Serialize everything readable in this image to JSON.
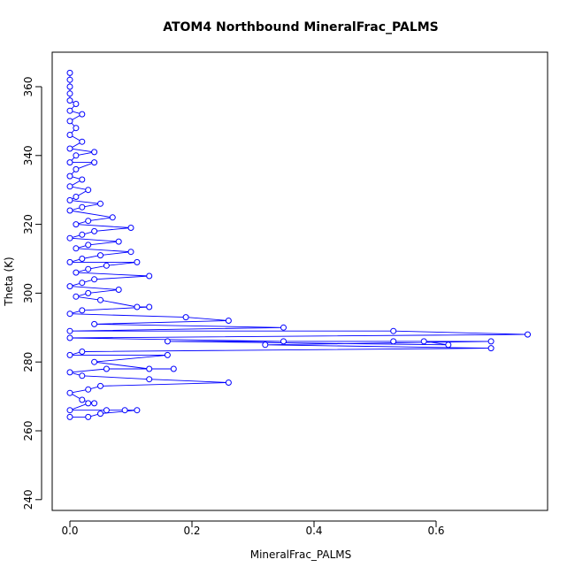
{
  "chart_data": {
    "type": "line",
    "title": "ATOM4 Northbound MineralFrac_PALMS",
    "xlabel": "MineralFrac_PALMS",
    "ylabel": "Theta (K)",
    "xlim": [
      0,
      0.75
    ],
    "ylim": [
      240,
      365
    ],
    "x_ticks": [
      0.0,
      0.2,
      0.4,
      0.6
    ],
    "x_tick_labels": [
      "0.0",
      "0.2",
      "0.4",
      "0.6"
    ],
    "y_ticks": [
      240,
      260,
      280,
      300,
      320,
      340,
      360
    ],
    "y_tick_labels": [
      "240",
      "260",
      "280",
      "300",
      "320",
      "340",
      "360"
    ],
    "grid": false,
    "legend": "none",
    "marker": "open-circle",
    "series_color": "#0000ff",
    "series": [
      {
        "name": "",
        "points": [
          [
            0.0,
            364
          ],
          [
            0.0,
            362
          ],
          [
            0.0,
            360
          ],
          [
            0.0,
            358
          ],
          [
            0.0,
            356
          ],
          [
            0.01,
            355
          ],
          [
            0.0,
            353
          ],
          [
            0.02,
            352
          ],
          [
            0.0,
            350
          ],
          [
            0.01,
            348
          ],
          [
            0.0,
            346
          ],
          [
            0.02,
            344
          ],
          [
            0.0,
            342
          ],
          [
            0.04,
            341
          ],
          [
            0.01,
            340
          ],
          [
            0.0,
            338
          ],
          [
            0.04,
            338
          ],
          [
            0.01,
            336
          ],
          [
            0.0,
            334
          ],
          [
            0.02,
            333
          ],
          [
            0.0,
            331
          ],
          [
            0.03,
            330
          ],
          [
            0.01,
            328
          ],
          [
            0.0,
            327
          ],
          [
            0.05,
            326
          ],
          [
            0.02,
            325
          ],
          [
            0.0,
            324
          ],
          [
            0.07,
            322
          ],
          [
            0.03,
            321
          ],
          [
            0.01,
            320
          ],
          [
            0.1,
            319
          ],
          [
            0.04,
            318
          ],
          [
            0.02,
            317
          ],
          [
            0.0,
            316
          ],
          [
            0.08,
            315
          ],
          [
            0.03,
            314
          ],
          [
            0.01,
            313
          ],
          [
            0.1,
            312
          ],
          [
            0.05,
            311
          ],
          [
            0.02,
            310
          ],
          [
            0.0,
            309
          ],
          [
            0.11,
            309
          ],
          [
            0.06,
            308
          ],
          [
            0.03,
            307
          ],
          [
            0.01,
            306
          ],
          [
            0.13,
            305
          ],
          [
            0.04,
            304
          ],
          [
            0.02,
            303
          ],
          [
            0.0,
            302
          ],
          [
            0.08,
            301
          ],
          [
            0.03,
            300
          ],
          [
            0.01,
            299
          ],
          [
            0.05,
            298
          ],
          [
            0.11,
            296
          ],
          [
            0.13,
            296
          ],
          [
            0.02,
            295
          ],
          [
            0.0,
            294
          ],
          [
            0.19,
            293
          ],
          [
            0.26,
            292
          ],
          [
            0.04,
            291
          ],
          [
            0.35,
            290
          ],
          [
            0.0,
            289
          ],
          [
            0.53,
            289
          ],
          [
            0.75,
            288
          ],
          [
            0.0,
            287
          ],
          [
            0.35,
            286
          ],
          [
            0.53,
            286
          ],
          [
            0.58,
            286
          ],
          [
            0.62,
            285
          ],
          [
            0.16,
            286
          ],
          [
            0.69,
            286
          ],
          [
            0.32,
            285
          ],
          [
            0.69,
            284
          ],
          [
            0.02,
            283
          ],
          [
            0.0,
            282
          ],
          [
            0.16,
            282
          ],
          [
            0.04,
            280
          ],
          [
            0.13,
            278
          ],
          [
            0.17,
            278
          ],
          [
            0.06,
            278
          ],
          [
            0.0,
            277
          ],
          [
            0.02,
            276
          ],
          [
            0.13,
            275
          ],
          [
            0.26,
            274
          ],
          [
            0.05,
            273
          ],
          [
            0.03,
            272
          ],
          [
            0.0,
            271
          ],
          [
            0.02,
            269
          ],
          [
            0.04,
            268
          ],
          [
            0.03,
            268
          ],
          [
            0.0,
            266
          ],
          [
            0.06,
            266
          ],
          [
            0.09,
            266
          ],
          [
            0.11,
            266
          ],
          [
            0.05,
            265
          ],
          [
            0.03,
            264
          ],
          [
            0.0,
            264
          ]
        ]
      }
    ]
  }
}
